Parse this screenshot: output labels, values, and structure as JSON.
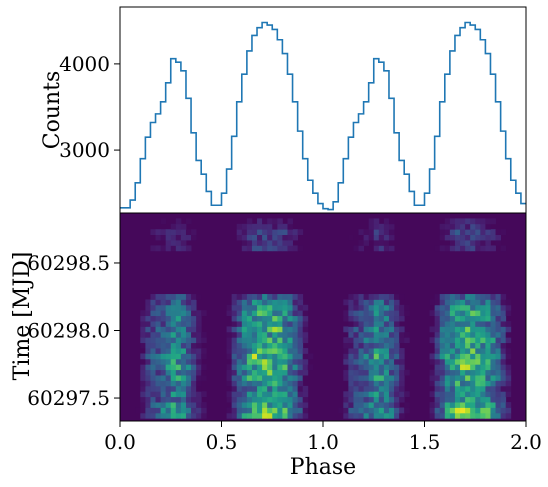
{
  "chart_data": [
    {
      "panel": "top",
      "type": "line",
      "ylabel": "Counts",
      "xlim": [
        0,
        2
      ],
      "ylim": [
        2270,
        4660
      ],
      "yticks": [
        3000,
        4000
      ],
      "color": "#1f77b4",
      "style": "step",
      "x": [
        0.0,
        0.025,
        0.05,
        0.075,
        0.1,
        0.125,
        0.15,
        0.175,
        0.2,
        0.225,
        0.25,
        0.275,
        0.3,
        0.325,
        0.35,
        0.375,
        0.4,
        0.425,
        0.45,
        0.475,
        0.5,
        0.525,
        0.55,
        0.575,
        0.6,
        0.625,
        0.65,
        0.675,
        0.7,
        0.725,
        0.75,
        0.775,
        0.8,
        0.825,
        0.85,
        0.875,
        0.9,
        0.925,
        0.95,
        0.975,
        1.0,
        1.025,
        1.05,
        1.075,
        1.1,
        1.125,
        1.15,
        1.175,
        1.2,
        1.225,
        1.25,
        1.275,
        1.3,
        1.325,
        1.35,
        1.375,
        1.4,
        1.425,
        1.45,
        1.475,
        1.5,
        1.525,
        1.55,
        1.575,
        1.6,
        1.625,
        1.65,
        1.675,
        1.7,
        1.725,
        1.75,
        1.775,
        1.8,
        1.825,
        1.85,
        1.875,
        1.9,
        1.925,
        1.95,
        1.975
      ],
      "y": [
        2330,
        2330,
        2420,
        2620,
        2900,
        3150,
        3320,
        3420,
        3560,
        3780,
        4060,
        4020,
        3920,
        3600,
        3200,
        2880,
        2720,
        2520,
        2360,
        2360,
        2500,
        2780,
        3160,
        3560,
        3880,
        4150,
        4330,
        4420,
        4480,
        4450,
        4400,
        4280,
        4120,
        3880,
        3560,
        3220,
        2900,
        2650,
        2500,
        2380,
        2320,
        2310,
        2400,
        2620,
        2900,
        3150,
        3320,
        3420,
        3560,
        3780,
        4060,
        4020,
        3920,
        3600,
        3200,
        2880,
        2720,
        2520,
        2360,
        2360,
        2500,
        2780,
        3160,
        3560,
        3880,
        4150,
        4330,
        4420,
        4480,
        4450,
        4400,
        4280,
        4120,
        3880,
        3560,
        3220,
        2900,
        2650,
        2500,
        2380
      ]
    },
    {
      "panel": "bottom",
      "type": "heatmap",
      "xlabel": "Phase",
      "ylabel": "Time [MJD]",
      "xlim": [
        0,
        2
      ],
      "ylim": [
        60297.33,
        60298.87
      ],
      "xticks": [
        0.0,
        0.5,
        1.0,
        1.5,
        2.0
      ],
      "xtick_labels": [
        "0.0",
        "0.5",
        "1.0",
        "1.5",
        "2.0"
      ],
      "yticks": [
        60297.5,
        60298.0,
        60298.5
      ],
      "ytick_labels": [
        "60297.5",
        "60298.0",
        "60298.5"
      ],
      "colormap": "viridis",
      "phase_bins": 80,
      "time_rows": [
        {
          "t": 60297.37,
          "level": 0.95
        },
        {
          "t": 60297.41,
          "level": 1.0
        },
        {
          "t": 60297.45,
          "level": 0.9
        },
        {
          "t": 60297.49,
          "level": 0.75
        },
        {
          "t": 60297.53,
          "level": 0.85
        },
        {
          "t": 60297.57,
          "level": 0.7
        },
        {
          "t": 60297.61,
          "level": 0.8
        },
        {
          "t": 60297.65,
          "level": 0.9
        },
        {
          "t": 60297.69,
          "level": 0.85
        },
        {
          "t": 60297.73,
          "level": 0.95
        },
        {
          "t": 60297.77,
          "level": 0.9
        },
        {
          "t": 60297.81,
          "level": 1.0
        },
        {
          "t": 60297.85,
          "level": 0.85
        },
        {
          "t": 60297.89,
          "level": 0.75
        },
        {
          "t": 60297.93,
          "level": 0.9
        },
        {
          "t": 60297.97,
          "level": 0.8
        },
        {
          "t": 60298.01,
          "level": 0.9
        },
        {
          "t": 60298.05,
          "level": 0.7
        },
        {
          "t": 60298.09,
          "level": 0.85
        },
        {
          "t": 60298.13,
          "level": 0.8
        },
        {
          "t": 60298.17,
          "level": 0.75
        },
        {
          "t": 60298.21,
          "level": 0.65
        },
        {
          "t": 60298.25,
          "level": 0.55
        },
        {
          "t": 60298.61,
          "level": 0.35
        },
        {
          "t": 60298.65,
          "level": 0.3
        },
        {
          "t": 60298.69,
          "level": 0.35
        },
        {
          "t": 60298.73,
          "level": 0.4
        },
        {
          "t": 60298.77,
          "level": 0.3
        },
        {
          "t": 60298.81,
          "level": 0.25
        }
      ]
    }
  ]
}
